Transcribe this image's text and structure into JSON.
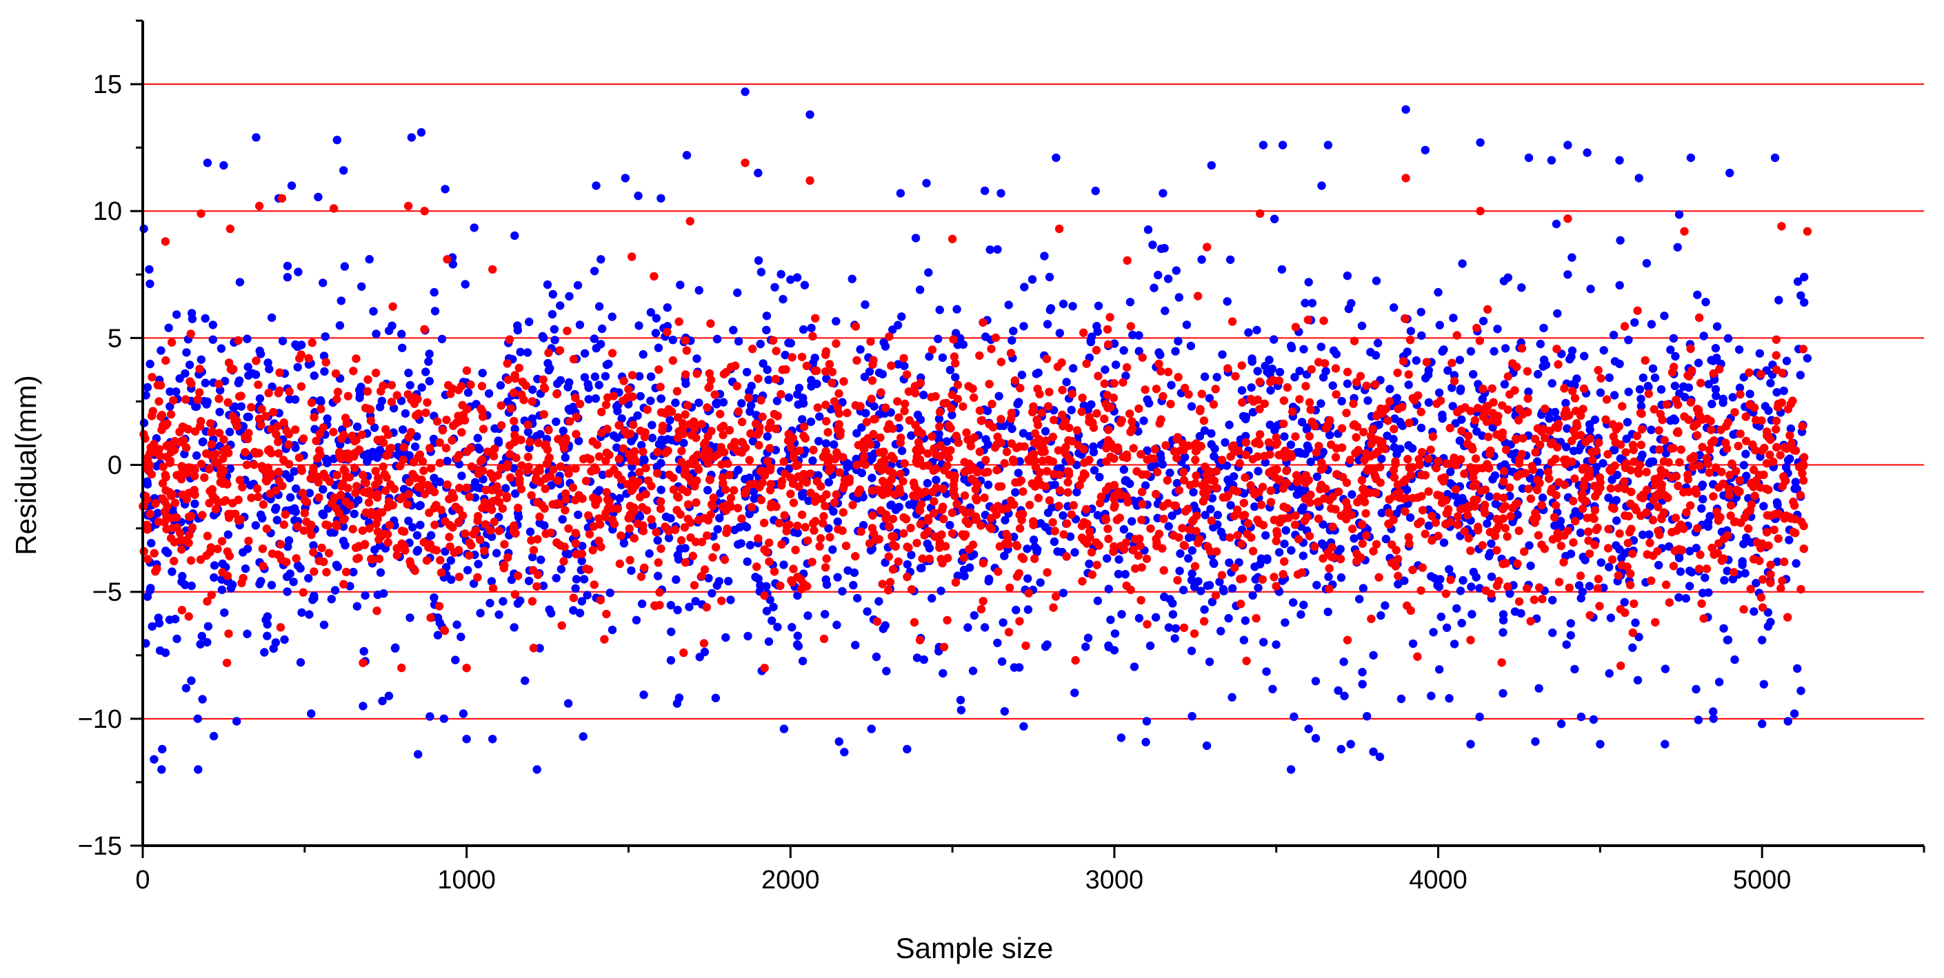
{
  "chart_data": {
    "type": "scatter",
    "title": "",
    "xlabel": "Sample size",
    "ylabel": "Residual(mm)",
    "xlim": [
      0,
      5500
    ],
    "ylim": [
      -15,
      17.5
    ],
    "x_ticks": [
      0,
      1000,
      2000,
      3000,
      4000,
      5000
    ],
    "x_tick_labels": [
      "0",
      "1000",
      "2000",
      "3000",
      "4000",
      "5000"
    ],
    "y_ticks": [
      -15,
      -10,
      -5,
      0,
      5,
      10,
      15
    ],
    "y_tick_labels": [
      "−15",
      "−10",
      "−5",
      "0",
      "5",
      "10",
      "15"
    ],
    "reference_lines": [
      -10,
      -5,
      0,
      5,
      10,
      15
    ],
    "reference_line_color": "#ff0000",
    "grid": false,
    "legend": "none",
    "series": [
      {
        "color": "#0000ff",
        "points": [
          [
            20,
            7.7
          ],
          [
            35,
            -11.6
          ],
          [
            60,
            -11.2
          ],
          [
            70,
            -7.4
          ],
          [
            150,
            -8.5
          ],
          [
            170,
            -10
          ],
          [
            200,
            11.9
          ],
          [
            250,
            11.8
          ],
          [
            290,
            -10.1
          ],
          [
            350,
            12.9
          ],
          [
            420,
            10.5
          ],
          [
            460,
            11
          ],
          [
            520,
            -9.8
          ],
          [
            600,
            12.8
          ],
          [
            620,
            11.6
          ],
          [
            680,
            -9.5
          ],
          [
            740,
            -9.3
          ],
          [
            760,
            -9.1
          ],
          [
            830,
            12.9
          ],
          [
            850,
            -11.4
          ],
          [
            860,
            13.1
          ],
          [
            930,
            -10
          ],
          [
            990,
            -9.8
          ],
          [
            1000,
            -10.8
          ],
          [
            1080,
            -10.8
          ],
          [
            1180,
            -8.5
          ],
          [
            1360,
            -10.7
          ],
          [
            1400,
            11
          ],
          [
            1490,
            11.3
          ],
          [
            1530,
            10.6
          ],
          [
            1600,
            10.5
          ],
          [
            1650,
            -9.4
          ],
          [
            1680,
            12.2
          ],
          [
            1860,
            14.7
          ],
          [
            1900,
            11.5
          ],
          [
            1980,
            -10.4
          ],
          [
            2060,
            13.8
          ],
          [
            2150,
            -10.9
          ],
          [
            2250,
            -10.4
          ],
          [
            2340,
            10.7
          ],
          [
            2360,
            -11.2
          ],
          [
            2420,
            11.1
          ],
          [
            2600,
            10.8
          ],
          [
            2650,
            10.7
          ],
          [
            2720,
            -10.3
          ],
          [
            2820,
            12.1
          ],
          [
            3100,
            -10.1
          ],
          [
            3150,
            10.7
          ],
          [
            3240,
            -9.9
          ],
          [
            3300,
            11.8
          ],
          [
            3460,
            12.6
          ],
          [
            3520,
            12.6
          ],
          [
            3600,
            -10.4
          ],
          [
            3640,
            11
          ],
          [
            3660,
            12.6
          ],
          [
            3700,
            -11.2
          ],
          [
            3730,
            -11
          ],
          [
            3780,
            -9.9
          ],
          [
            3800,
            -11.3
          ],
          [
            3820,
            -11.5
          ],
          [
            3900,
            14
          ],
          [
            3960,
            12.4
          ],
          [
            4100,
            -11
          ],
          [
            4130,
            12.7
          ],
          [
            4200,
            -9
          ],
          [
            4280,
            12.1
          ],
          [
            4300,
            -10.9
          ],
          [
            4350,
            12
          ],
          [
            4380,
            -10.2
          ],
          [
            4400,
            12.6
          ],
          [
            4460,
            12.3
          ],
          [
            4500,
            -11
          ],
          [
            4560,
            12
          ],
          [
            4620,
            11.3
          ],
          [
            4700,
            -11
          ],
          [
            4780,
            12.1
          ],
          [
            4850,
            -10
          ],
          [
            4900,
            11.5
          ],
          [
            5000,
            -10.2
          ],
          [
            5040,
            12.1
          ],
          [
            5080,
            -10.1
          ],
          [
            5100,
            -9.8
          ],
          [
            5120,
            -8.9
          ],
          [
            5130,
            7.4
          ],
          [
            5130,
            6.4
          ],
          [
            5140,
            4.2
          ],
          [
            80,
            5.4
          ],
          [
            120,
            -4.6
          ],
          [
            300,
            7.2
          ],
          [
            380,
            -6.1
          ],
          [
            480,
            7.6
          ],
          [
            560,
            -6.3
          ],
          [
            700,
            8.1
          ],
          [
            780,
            -7.2
          ],
          [
            900,
            6.8
          ],
          [
            1100,
            -5.9
          ],
          [
            1250,
            7.1
          ],
          [
            1450,
            -6.5
          ],
          [
            1620,
            6.2
          ],
          [
            1800,
            -6.8
          ],
          [
            2000,
            7.3
          ],
          [
            2200,
            -7.1
          ],
          [
            2400,
            6.9
          ],
          [
            2600,
            -6.4
          ],
          [
            2800,
            7.4
          ],
          [
            3000,
            -7.3
          ],
          [
            3200,
            6.6
          ],
          [
            3400,
            -6.9
          ],
          [
            3600,
            7.2
          ],
          [
            3800,
            -7.5
          ],
          [
            4000,
            6.8
          ],
          [
            4200,
            -6.6
          ],
          [
            4400,
            7.5
          ],
          [
            4600,
            -7.2
          ],
          [
            4800,
            6.7
          ],
          [
            5000,
            -6.9
          ]
        ]
      },
      {
        "color": "#ff0000",
        "points": [
          [
            70,
            8.8
          ],
          [
            180,
            9.9
          ],
          [
            270,
            9.3
          ],
          [
            360,
            10.2
          ],
          [
            430,
            10.5
          ],
          [
            590,
            10.1
          ],
          [
            820,
            10.2
          ],
          [
            870,
            10
          ],
          [
            940,
            8.1
          ],
          [
            1080,
            7.7
          ],
          [
            1510,
            8.2
          ],
          [
            1690,
            9.6
          ],
          [
            1860,
            11.9
          ],
          [
            2060,
            11.2
          ],
          [
            2500,
            8.9
          ],
          [
            2830,
            9.3
          ],
          [
            3450,
            9.9
          ],
          [
            3900,
            11.3
          ],
          [
            4130,
            10
          ],
          [
            4400,
            9.7
          ],
          [
            4760,
            9.2
          ],
          [
            5060,
            9.4
          ],
          [
            5140,
            9.2
          ],
          [
            260,
            -7.8
          ],
          [
            680,
            -7.8
          ],
          [
            1000,
            -8
          ],
          [
            1670,
            -7.4
          ],
          [
            1920,
            -8
          ],
          [
            2400,
            -6.9
          ],
          [
            2880,
            -7.7
          ],
          [
            3720,
            -6.9
          ],
          [
            4100,
            -6.9
          ],
          [
            4670,
            -6.2
          ],
          [
            5120,
            -4.9
          ],
          [
            50,
            2.5
          ],
          [
            100,
            -1.5
          ],
          [
            150,
            3.2
          ],
          [
            200,
            -2.8
          ],
          [
            250,
            1
          ],
          [
            300,
            -0.6
          ],
          [
            350,
            4.1
          ],
          [
            400,
            -3.5
          ],
          [
            450,
            0.8
          ],
          [
            500,
            -1.9
          ],
          [
            550,
            2.2
          ],
          [
            600,
            -0.4
          ],
          [
            650,
            3.7
          ],
          [
            700,
            -2.5
          ],
          [
            750,
            1.4
          ],
          [
            800,
            -3.1
          ],
          [
            850,
            0.3
          ],
          [
            900,
            -1.7
          ],
          [
            950,
            2.8
          ],
          [
            1000,
            -0.9
          ],
          [
            1050,
            1.9
          ],
          [
            1100,
            -2.6
          ],
          [
            1150,
            3.4
          ],
          [
            1200,
            -1.2
          ],
          [
            1250,
            0.6
          ],
          [
            1300,
            -3.8
          ],
          [
            1350,
            2.4
          ],
          [
            1400,
            -0.2
          ],
          [
            1450,
            4.4
          ],
          [
            1500,
            -2.1
          ],
          [
            1550,
            1.1
          ],
          [
            1600,
            -3.3
          ],
          [
            1650,
            2.9
          ],
          [
            1700,
            -0.7
          ],
          [
            1750,
            3.6
          ],
          [
            1800,
            -1.6
          ],
          [
            1850,
            0.9
          ],
          [
            1900,
            -2.9
          ],
          [
            1950,
            2
          ],
          [
            2000,
            -0.5
          ],
          [
            2050,
            3.9
          ],
          [
            2100,
            -2.3
          ],
          [
            2150,
            1.6
          ],
          [
            2200,
            -3.6
          ],
          [
            2250,
            2.6
          ],
          [
            2300,
            -1.1
          ],
          [
            2350,
            4.2
          ],
          [
            2400,
            -1.8
          ],
          [
            2450,
            0.4
          ],
          [
            2500,
            -2.7
          ],
          [
            2550,
            3.1
          ],
          [
            2600,
            -0.3
          ],
          [
            2650,
            1.8
          ],
          [
            2700,
            -3.2
          ],
          [
            2750,
            2.3
          ],
          [
            2800,
            -1.4
          ],
          [
            2850,
            0.7
          ],
          [
            2900,
            -2.4
          ],
          [
            2950,
            3.5
          ],
          [
            3000,
            -0.8
          ],
          [
            3050,
            1.3
          ],
          [
            3100,
            -3.7
          ],
          [
            3150,
            2.7
          ],
          [
            3200,
            -1
          ],
          [
            3250,
            0.2
          ],
          [
            3300,
            -2.2
          ],
          [
            3350,
            3.8
          ],
          [
            3400,
            -1.5
          ],
          [
            3450,
            1.2
          ],
          [
            3500,
            -3
          ],
          [
            3550,
            2.1
          ],
          [
            3600,
            -0.6
          ],
          [
            3650,
            4
          ],
          [
            3700,
            -2
          ],
          [
            3750,
            1.5
          ],
          [
            3800,
            -3.4
          ],
          [
            3850,
            2.5
          ],
          [
            3900,
            -1.3
          ],
          [
            3950,
            0.5
          ],
          [
            4000,
            -2.8
          ],
          [
            4050,
            3.3
          ],
          [
            4100,
            -0.1
          ],
          [
            4150,
            1.7
          ],
          [
            4200,
            -3.9
          ],
          [
            4250,
            2.2
          ],
          [
            4300,
            -1.9
          ],
          [
            4350,
            0.1
          ],
          [
            4400,
            -2.6
          ],
          [
            4450,
            3
          ],
          [
            4500,
            -0.9
          ],
          [
            4550,
            1.4
          ],
          [
            4600,
            -3.5
          ],
          [
            4650,
            2.8
          ],
          [
            4700,
            -1.2
          ],
          [
            4750,
            0.6
          ],
          [
            4800,
            -2.5
          ],
          [
            4850,
            3.6
          ],
          [
            4900,
            -0.4
          ],
          [
            4950,
            1.9
          ],
          [
            5000,
            -3.1
          ],
          [
            5050,
            2.4
          ],
          [
            5100,
            -1.6
          ],
          [
            5130,
            0.3
          ]
        ]
      }
    ]
  }
}
